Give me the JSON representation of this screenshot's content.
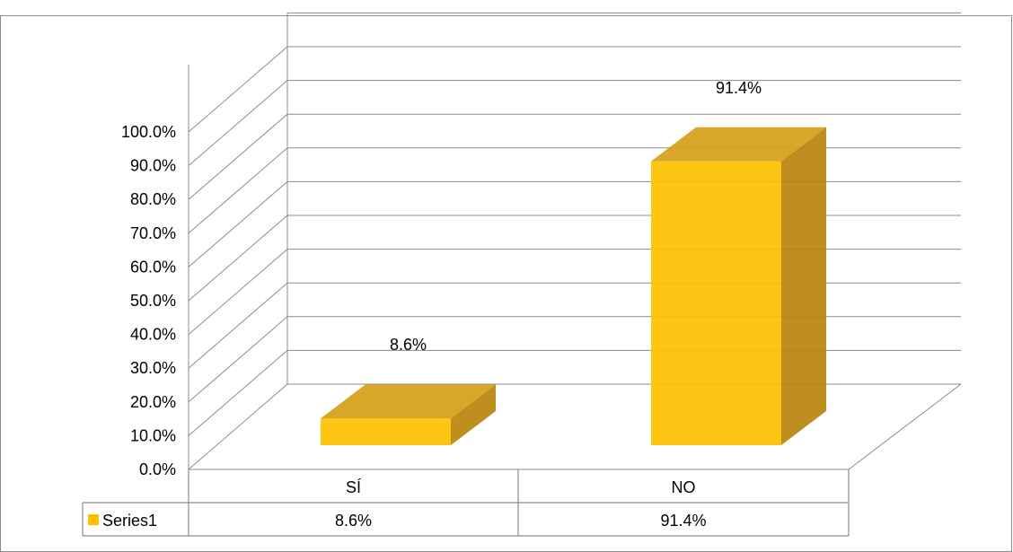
{
  "chart_data": {
    "type": "bar",
    "title": "",
    "xlabel": "",
    "ylabel": "",
    "categories": [
      "SÍ",
      "NO"
    ],
    "series": [
      {
        "name": "Series1",
        "values": [
          8.6,
          91.4
        ],
        "value_labels": [
          "8.6%",
          "91.4%"
        ]
      }
    ],
    "ylim": [
      0,
      100
    ],
    "yticks": [
      0,
      10,
      20,
      30,
      40,
      50,
      60,
      70,
      80,
      90,
      100
    ],
    "ytick_labels": [
      "0.0%",
      "10.0%",
      "20.0%",
      "30.0%",
      "40.0%",
      "50.0%",
      "60.0%",
      "70.0%",
      "80.0%",
      "90.0%",
      "100.0%"
    ],
    "grid": true,
    "style": "3d-column",
    "data_table": true,
    "colors": {
      "bar_front": "#FFC000",
      "bar_top": "#D4A017",
      "bar_side": "#B8860B",
      "grid": "#8C8C8C",
      "legend_key": "#FFC000"
    }
  }
}
